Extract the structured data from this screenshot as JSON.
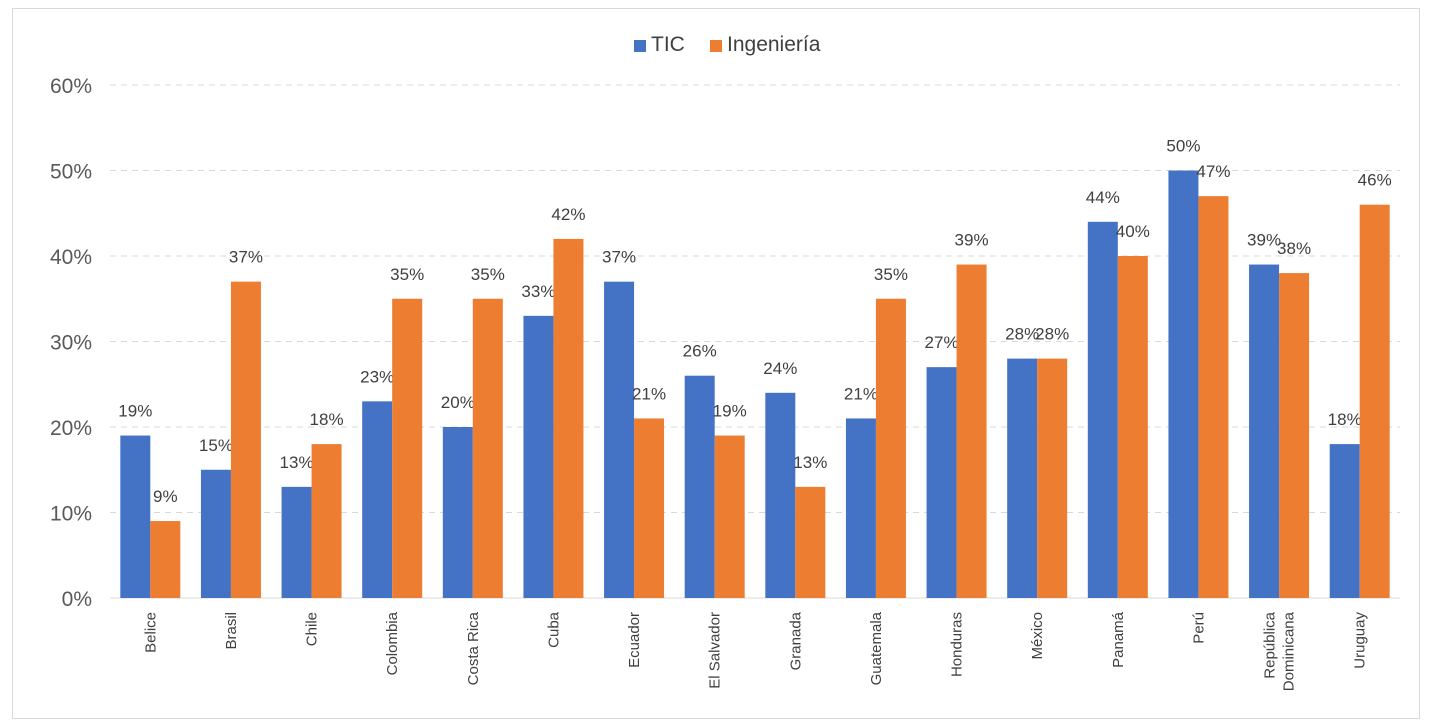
{
  "chart_data": {
    "type": "bar",
    "categories": [
      "Belice",
      "Brasil",
      "Chile",
      "Colombia",
      "Costa Rica",
      "Cuba",
      "Ecuador",
      "El Salvador",
      "Granada",
      "Guatemala",
      "Honduras",
      "México",
      "Panamá",
      "Perú",
      [
        "República",
        "Dominicana"
      ],
      "Uruguay"
    ],
    "series": [
      {
        "name": "TIC",
        "color": "#4472c4",
        "values": [
          19,
          15,
          13,
          23,
          20,
          33,
          37,
          26,
          24,
          21,
          27,
          28,
          44,
          50,
          39,
          18
        ]
      },
      {
        "name": "Ingeniería",
        "color": "#ed7d31",
        "values": [
          9,
          37,
          18,
          35,
          35,
          42,
          21,
          19,
          13,
          35,
          39,
          28,
          40,
          47,
          38,
          46
        ]
      }
    ],
    "ylim": [
      0,
      60
    ],
    "yticks": [
      "0%",
      "10%",
      "20%",
      "30%",
      "40%",
      "50%",
      "60%"
    ],
    "value_suffix": "%",
    "grid": true,
    "legend_position": "top-center",
    "title": "",
    "xlabel": "",
    "ylabel": ""
  }
}
